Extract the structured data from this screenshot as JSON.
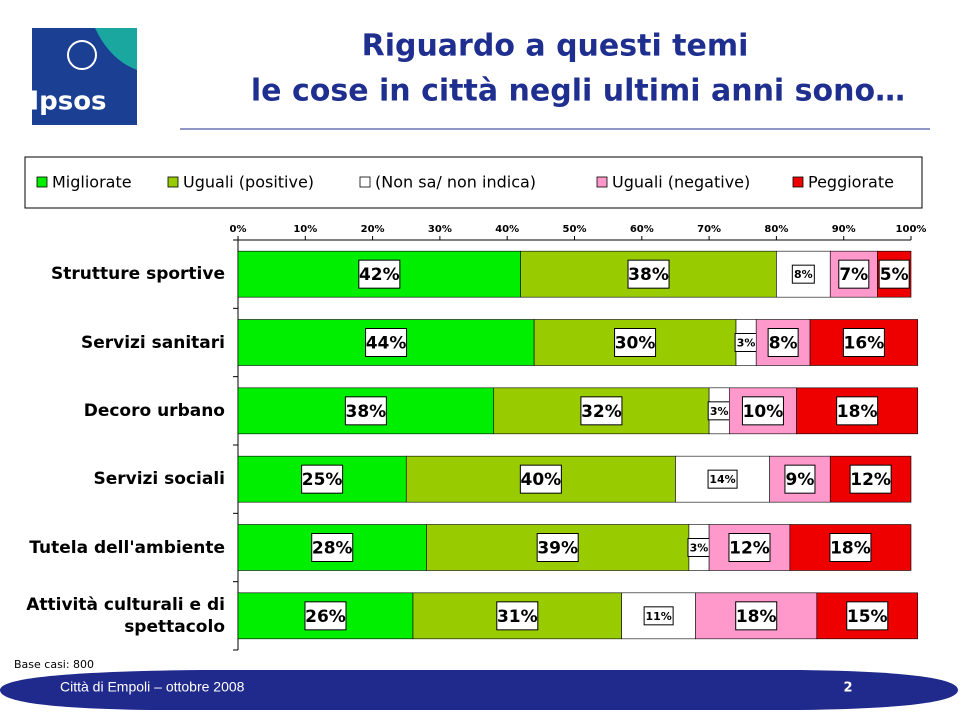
{
  "logo": "Ipsos",
  "footer": "Città di Empoli – ottobre 2008",
  "page_number": "2",
  "chart_data": {
    "type": "stacked-bar-horizontal",
    "title": [
      "Riguardo a questi temi",
      "le cose in città negli ultimi anni sono…"
    ],
    "note": "Base casi: 800",
    "categories": [
      "Strutture sportive",
      "Servizi sanitari",
      "Decoro urbano",
      "Servizi sociali",
      "Tutela dell'ambiente",
      "Attività culturali e di spettacolo"
    ],
    "series": [
      {
        "name": "Migliorate",
        "color": "#00ee00",
        "values": [
          42,
          44,
          38,
          25,
          28,
          26
        ],
        "value_labels": [
          "42%",
          "44%",
          "38%",
          "25%",
          "28%",
          "26%"
        ]
      },
      {
        "name": "Uguali (positive)",
        "color": "#99cc00",
        "values": [
          38,
          30,
          32,
          40,
          39,
          31
        ],
        "value_labels": [
          "38%",
          "30%",
          "32%",
          "40%",
          "39%",
          "31%"
        ]
      },
      {
        "name": "(Non sa/ non indica)",
        "color": "#ffffff",
        "values": [
          8,
          3,
          3,
          14,
          3,
          11
        ],
        "value_labels": [
          "8%",
          "3%",
          "3%",
          "14%",
          "3%",
          "11%"
        ]
      },
      {
        "name": "Uguali (negative)",
        "color": "#ff99cc",
        "values": [
          7,
          8,
          10,
          9,
          12,
          18
        ],
        "value_labels": [
          "7%",
          "8%",
          "10%",
          "9%",
          "12%",
          "18%"
        ]
      },
      {
        "name": "Peggiorate",
        "color": "#ee0000",
        "values": [
          5,
          16,
          18,
          12,
          18,
          15
        ],
        "value_labels": [
          "5%",
          "16%",
          "18%",
          "12%",
          "18%",
          "15%"
        ]
      }
    ],
    "xlim": [
      0,
      100
    ],
    "xticks": [
      {
        "value": 0,
        "label": "0%"
      },
      {
        "value": 10,
        "label": "10%"
      },
      {
        "value": 20,
        "label": "20%"
      },
      {
        "value": 30,
        "label": "30%"
      },
      {
        "value": 40,
        "label": "40%"
      },
      {
        "value": 50,
        "label": "50%"
      },
      {
        "value": 60,
        "label": "60%"
      },
      {
        "value": 70,
        "label": "70%"
      },
      {
        "value": 80,
        "label": "80%"
      },
      {
        "value": 90,
        "label": "90%"
      },
      {
        "value": 100,
        "label": "100%"
      }
    ],
    "legend": "top"
  }
}
